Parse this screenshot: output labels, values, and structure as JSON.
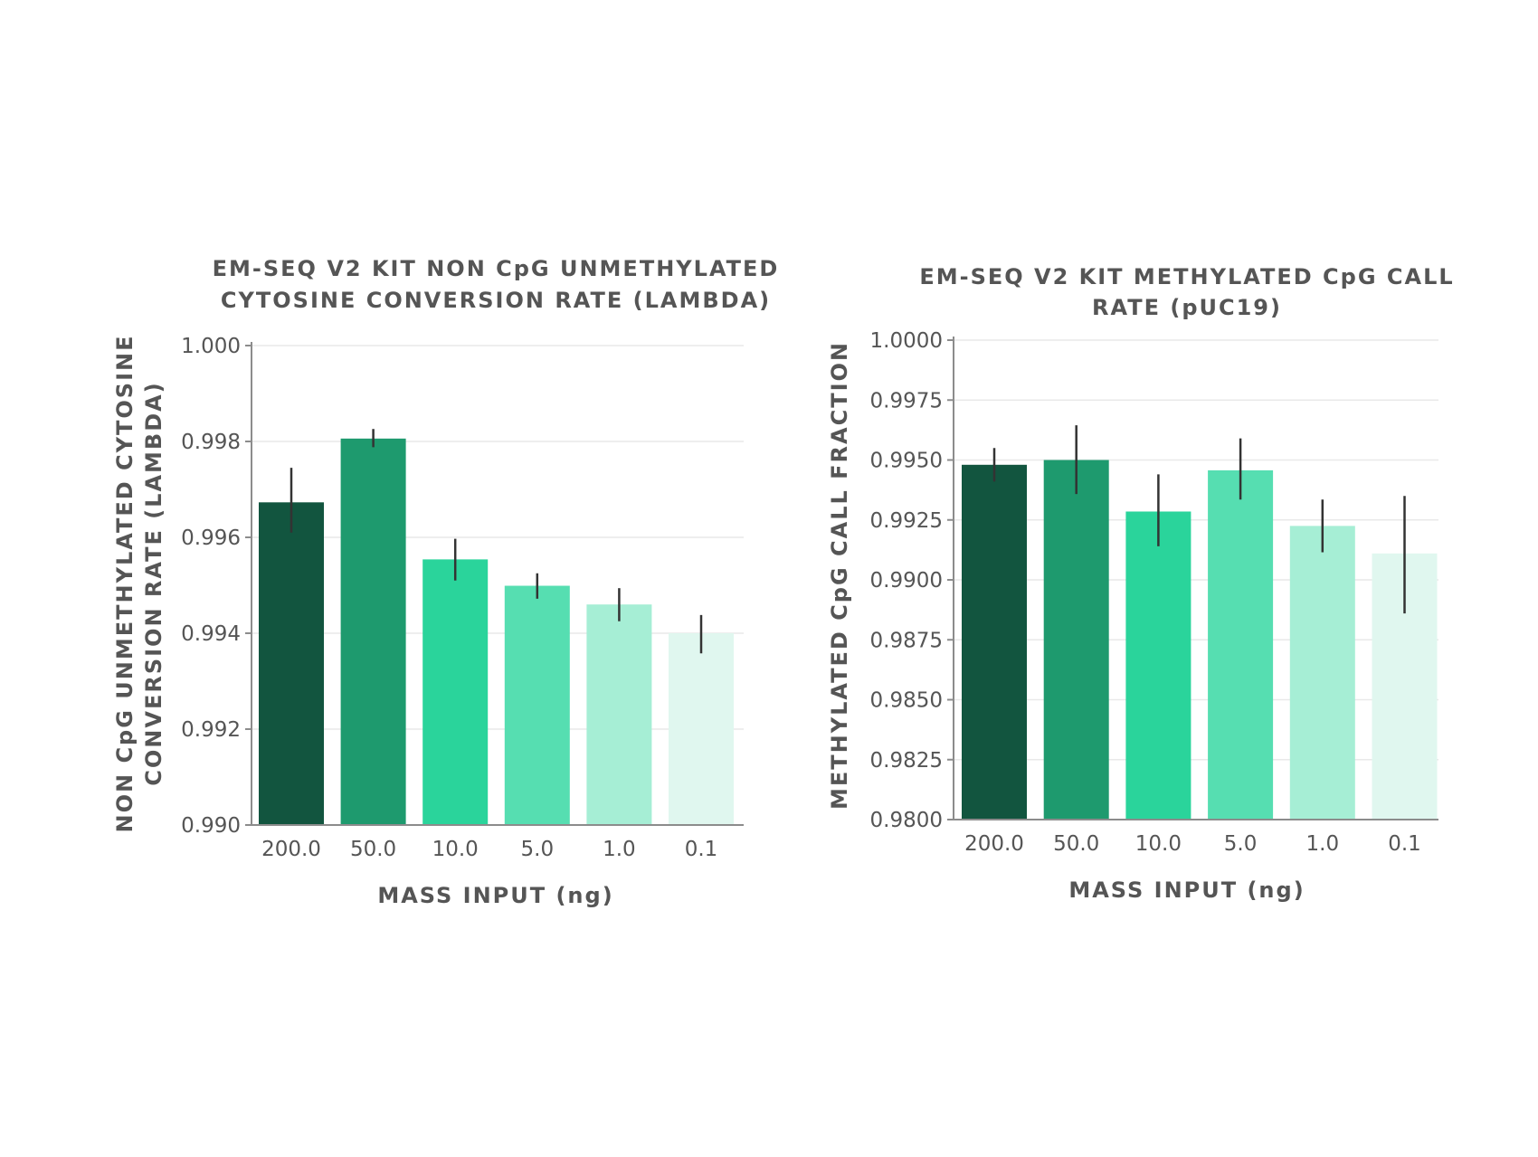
{
  "chart_data": [
    {
      "type": "bar",
      "title": [
        "EM-SEQ V2 KIT NON CpG UNMETHYLATED",
        "CYTOSINE CONVERSION RATE (LAMBDA)"
      ],
      "xlabel": "MASS INPUT (ng)",
      "ylabel": [
        "NON CpG UNMETHYLATED CYTOSINE",
        "CONVERSION RATE (LAMBDA)"
      ],
      "categories": [
        "200.0",
        "50.0",
        "10.0",
        "5.0",
        "1.0",
        "0.1"
      ],
      "values": [
        0.99673,
        0.99806,
        0.99554,
        0.99499,
        0.9946,
        0.994
      ],
      "error_low": [
        0.9961,
        0.99788,
        0.9951,
        0.99472,
        0.99425,
        0.99358
      ],
      "error_high": [
        0.99745,
        0.99826,
        0.99597,
        0.99525,
        0.99494,
        0.99438
      ],
      "ylim": [
        0.99,
        1.0
      ],
      "yticks": [
        0.99,
        0.992,
        0.994,
        0.996,
        0.998,
        1.0
      ],
      "ytick_labels": [
        "0.990",
        "0.992",
        "0.994",
        "0.996",
        "0.998",
        "1.000"
      ],
      "colors": [
        "#12553f",
        "#1e9a6e",
        "#2ad49b",
        "#56deb1",
        "#a6eed5",
        "#e0f7ef"
      ],
      "grid": true,
      "legend": "none"
    },
    {
      "type": "bar",
      "title": [
        "EM-SEQ V2 KIT METHYLATED CpG CALL",
        "RATE (pUC19)"
      ],
      "xlabel": "MASS INPUT (ng)",
      "ylabel": [
        "METHYLATED CpG CALL FRACTION"
      ],
      "categories": [
        "200.0",
        "50.0",
        "10.0",
        "5.0",
        "1.0",
        "0.1"
      ],
      "values": [
        0.9948,
        0.995,
        0.99285,
        0.99457,
        0.99225,
        0.9911
      ],
      "error_low": [
        0.9941,
        0.99358,
        0.9914,
        0.99335,
        0.99115,
        0.9886
      ],
      "error_high": [
        0.9955,
        0.99645,
        0.9944,
        0.9959,
        0.99335,
        0.9935
      ],
      "ylim": [
        0.98,
        1.0
      ],
      "yticks": [
        0.98,
        0.9825,
        0.985,
        0.9875,
        0.99,
        0.9925,
        0.995,
        0.9975,
        1.0
      ],
      "ytick_labels": [
        "0.9800",
        "0.9825",
        "0.9850",
        "0.9875",
        "0.9900",
        "0.9925",
        "0.9950",
        "0.9975",
        "1.0000"
      ],
      "colors": [
        "#12553f",
        "#1e9a6e",
        "#2ad49b",
        "#56deb1",
        "#a6eed5",
        "#e0f7ef"
      ],
      "grid": true,
      "legend": "none"
    }
  ]
}
